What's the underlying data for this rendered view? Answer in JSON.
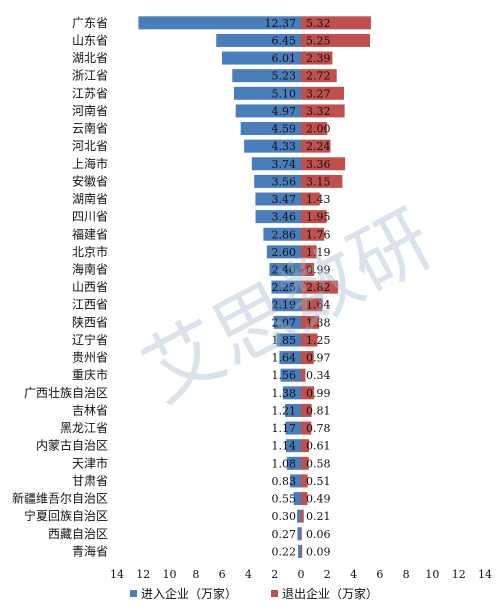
{
  "chart_data": {
    "type": "bar",
    "orientation": "horizontal",
    "layout": "butterfly",
    "categories": [
      "广东省",
      "山东省",
      "湖北省",
      "浙江省",
      "江苏省",
      "河南省",
      "云南省",
      "河北省",
      "上海市",
      "安徽省",
      "湖南省",
      "四川省",
      "福建省",
      "北京市",
      "海南省",
      "山西省",
      "江西省",
      "陕西省",
      "辽宁省",
      "贵州省",
      "重庆市",
      "广西壮族自治区",
      "吉林省",
      "黑龙江省",
      "内蒙古自治区",
      "天津市",
      "甘肃省",
      "新疆维吾尔自治区",
      "宁夏回族自治区",
      "西藏自治区",
      "青海省"
    ],
    "series": [
      {
        "name": "进入企业（万家）",
        "color": "#4a7ebb",
        "values": [
          12.37,
          6.45,
          6.01,
          5.23,
          5.1,
          4.97,
          4.59,
          4.33,
          3.74,
          3.56,
          3.47,
          3.46,
          2.86,
          2.6,
          2.4,
          2.25,
          2.19,
          2.07,
          1.85,
          1.64,
          1.56,
          1.38,
          1.21,
          1.17,
          1.14,
          1.08,
          0.83,
          0.55,
          0.3,
          0.27,
          0.22
        ],
        "labels": [
          "12.37",
          "6.45",
          "6.01",
          "5.23",
          "5.10",
          "4.97",
          "4.59",
          "4.33",
          "3.74",
          "3.56",
          "3.47",
          "3.46",
          "2.86",
          "2.60",
          "2.40",
          "2.25",
          "2.19",
          "2.07",
          "1.85",
          "1.64",
          "1.56",
          "1.38",
          "1.21",
          "1.17",
          "1.14",
          "1.08",
          "0.83",
          "0.55",
          "0.30",
          "0.27",
          "0.22"
        ]
      },
      {
        "name": "退出企业（万家）",
        "color": "#c0504d",
        "values": [
          5.32,
          5.25,
          2.39,
          2.72,
          3.27,
          3.32,
          2.0,
          2.24,
          3.36,
          3.15,
          1.43,
          1.95,
          1.76,
          1.19,
          0.99,
          2.82,
          1.64,
          1.38,
          1.25,
          0.97,
          0.34,
          0.99,
          0.81,
          0.78,
          0.61,
          0.58,
          0.51,
          0.49,
          0.21,
          0.06,
          0.09
        ],
        "labels": [
          "5.32",
          "5.25",
          "2.39",
          "2.72",
          "3.27",
          "3.32",
          "2.00",
          "2.24",
          "3.36",
          "3.15",
          "1.43",
          "1.95",
          "1.76",
          "1.19",
          "0.99",
          "2.82",
          "1.64",
          "1.38",
          "1.25",
          "0.97",
          "0.34",
          "0.99",
          "0.81",
          "0.78",
          "0.61",
          "0.58",
          "0.51",
          "0.49",
          "0.21",
          "0.06",
          "0.09"
        ]
      }
    ],
    "xlim": [
      -14,
      14
    ],
    "xticks": [
      -14,
      -12,
      -10,
      -8,
      -6,
      -4,
      -2,
      0,
      2,
      4,
      6,
      8,
      10,
      12,
      14
    ],
    "xtick_labels": [
      "14",
      "12",
      "10",
      "8",
      "6",
      "4",
      "2",
      "0",
      "2",
      "4",
      "6",
      "8",
      "10",
      "12",
      "14"
    ],
    "grid": false,
    "legend_position": "bottom"
  },
  "watermark": "艾思数研"
}
